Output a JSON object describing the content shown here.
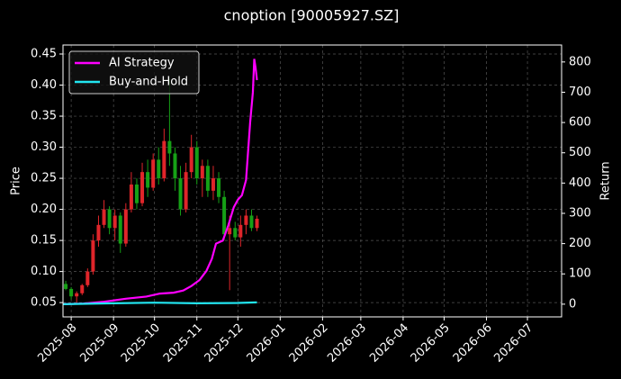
{
  "chart_data": {
    "type": "candlestick",
    "title": "cnoption [90005927.SZ]",
    "y_label": "Price",
    "y2_label": "Return",
    "xlim": [
      "2025-07-26",
      "2026-07-26"
    ],
    "xticks": [
      {
        "value": "2025-08-01",
        "label": "2025-08"
      },
      {
        "value": "2025-09-01",
        "label": "2025-09"
      },
      {
        "value": "2025-10-01",
        "label": "2025-10"
      },
      {
        "value": "2025-11-01",
        "label": "2025-11"
      },
      {
        "value": "2025-12-01",
        "label": "2025-12"
      },
      {
        "value": "2026-01-01",
        "label": "2026-01"
      },
      {
        "value": "2026-02-01",
        "label": "2026-02"
      },
      {
        "value": "2026-03-01",
        "label": "2026-03"
      },
      {
        "value": "2026-04-01",
        "label": "2026-04"
      },
      {
        "value": "2026-05-01",
        "label": "2026-05"
      },
      {
        "value": "2026-06-01",
        "label": "2026-06"
      },
      {
        "value": "2026-07-01",
        "label": "2026-07"
      }
    ],
    "ylim": [
      0.027,
      0.4645
    ],
    "yticks": [
      0.05,
      {
        "value": 0.1,
        "label": "0.10"
      },
      0.15,
      {
        "value": 0.2,
        "label": "0.20"
      },
      0.25,
      {
        "value": 0.3,
        "label": "0.30"
      },
      0.35,
      {
        "value": 0.4,
        "label": "0.40"
      },
      0.45
    ],
    "y2lim": [
      -42,
      856
    ],
    "y2ticks": [
      0,
      100,
      200,
      300,
      400,
      500,
      600,
      700,
      800
    ],
    "grid": true,
    "legend": "upper left",
    "up_color": "#e0252a",
    "down_color": "#16a016",
    "candles": {
      "x": [
        "2025-07-28",
        "2025-08-01",
        "2025-08-05",
        "2025-08-09",
        "2025-08-13",
        "2025-08-17",
        "2025-08-21",
        "2025-08-25",
        "2025-08-29",
        "2025-09-02",
        "2025-09-06",
        "2025-09-10",
        "2025-09-14",
        "2025-09-18",
        "2025-09-22",
        "2025-09-26",
        "2025-09-30",
        "2025-10-04",
        "2025-10-08",
        "2025-10-12",
        "2025-10-16",
        "2025-10-20",
        "2025-10-24",
        "2025-10-28",
        "2025-11-01",
        "2025-11-05",
        "2025-11-09",
        "2025-11-13",
        "2025-11-17",
        "2025-11-21",
        "2025-11-25",
        "2025-11-29",
        "2025-12-03",
        "2025-12-07",
        "2025-12-11",
        "2025-12-15"
      ],
      "open": [
        0.08,
        0.072,
        0.06,
        0.065,
        0.078,
        0.1,
        0.15,
        0.175,
        0.2,
        0.17,
        0.19,
        0.145,
        0.2,
        0.24,
        0.21,
        0.26,
        0.235,
        0.28,
        0.25,
        0.31,
        0.29,
        0.25,
        0.2,
        0.26,
        0.3,
        0.25,
        0.27,
        0.23,
        0.25,
        0.22,
        0.16,
        0.17,
        0.155,
        0.175,
        0.19,
        0.17
      ],
      "high": [
        0.085,
        0.075,
        0.068,
        0.08,
        0.105,
        0.16,
        0.19,
        0.215,
        0.205,
        0.2,
        0.195,
        0.21,
        0.26,
        0.25,
        0.275,
        0.28,
        0.29,
        0.3,
        0.33,
        0.41,
        0.3,
        0.27,
        0.275,
        0.32,
        0.31,
        0.28,
        0.28,
        0.27,
        0.26,
        0.23,
        0.19,
        0.18,
        0.19,
        0.2,
        0.2,
        0.19
      ],
      "low": [
        0.07,
        0.055,
        0.05,
        0.062,
        0.075,
        0.095,
        0.14,
        0.17,
        0.16,
        0.15,
        0.13,
        0.14,
        0.195,
        0.2,
        0.205,
        0.22,
        0.23,
        0.24,
        0.245,
        0.27,
        0.23,
        0.19,
        0.195,
        0.25,
        0.24,
        0.22,
        0.22,
        0.215,
        0.21,
        0.15,
        0.07,
        0.15,
        0.14,
        0.16,
        0.165,
        0.165
      ],
      "close": [
        0.072,
        0.06,
        0.065,
        0.078,
        0.1,
        0.15,
        0.175,
        0.2,
        0.17,
        0.19,
        0.145,
        0.2,
        0.24,
        0.21,
        0.26,
        0.235,
        0.28,
        0.25,
        0.31,
        0.29,
        0.25,
        0.2,
        0.26,
        0.3,
        0.25,
        0.27,
        0.23,
        0.25,
        0.22,
        0.16,
        0.17,
        0.155,
        0.175,
        0.19,
        0.17,
        0.185
      ]
    },
    "series": [
      {
        "name": "AI Strategy",
        "color": "#ff00ff",
        "axis": "y2",
        "x": [
          "2025-07-26",
          "2025-08-10",
          "2025-08-25",
          "2025-09-10",
          "2025-09-25",
          "2025-10-05",
          "2025-10-15",
          "2025-10-22",
          "2025-10-28",
          "2025-11-03",
          "2025-11-08",
          "2025-11-12",
          "2025-11-15",
          "2025-11-20",
          "2025-11-24",
          "2025-11-28",
          "2025-12-01",
          "2025-12-04",
          "2025-12-07",
          "2025-12-10",
          "2025-12-12",
          "2025-12-13",
          "2025-12-14",
          "2025-12-15"
        ],
        "values": [
          0,
          2,
          8,
          18,
          25,
          35,
          38,
          45,
          60,
          80,
          110,
          150,
          200,
          210,
          260,
          320,
          345,
          360,
          410,
          600,
          700,
          810,
          780,
          740
        ]
      },
      {
        "name": "Buy-and-Hold",
        "color": "#22e5f0",
        "axis": "y2",
        "x": [
          "2025-07-26",
          "2025-09-01",
          "2025-10-01",
          "2025-11-01",
          "2025-12-01",
          "2025-12-15"
        ],
        "values": [
          0,
          3,
          5,
          3,
          4,
          6
        ]
      }
    ]
  }
}
